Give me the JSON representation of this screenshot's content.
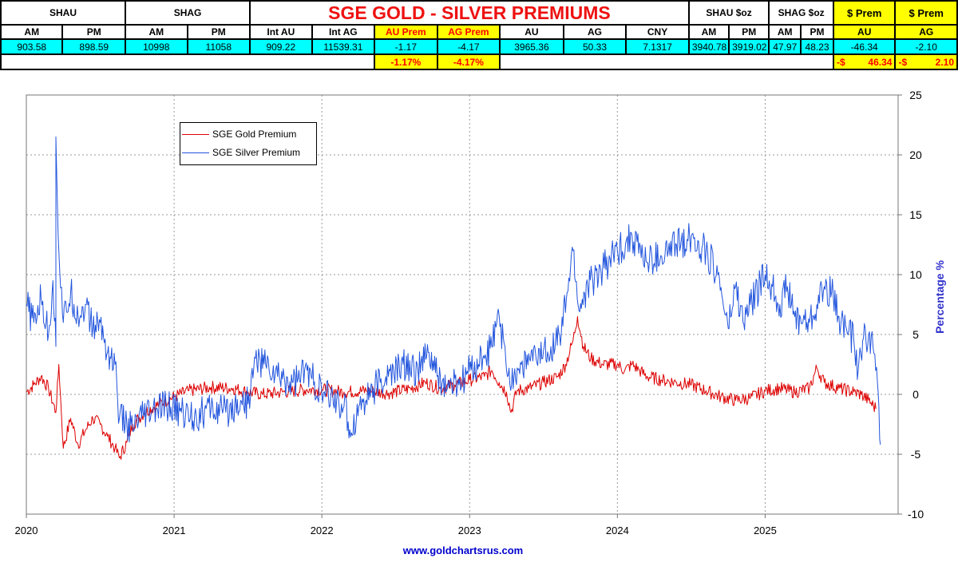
{
  "table": {
    "title": "SGE GOLD - SILVER PREMIUMS",
    "title_color": "#ee1111",
    "groups": {
      "shau": "SHAU",
      "shag": "SHAG",
      "shau_oz": "SHAU $oz",
      "shag_oz": "SHAG $oz",
      "prem_au": "$ Prem",
      "prem_ag": "$ Prem"
    },
    "headers": [
      "AM",
      "PM",
      "AM",
      "PM",
      "Int AU",
      "Int AG",
      "AU Prem",
      "AG Prem",
      "AU",
      "AG",
      "CNY",
      "AM",
      "PM",
      "AM",
      "PM",
      "AU",
      "AG"
    ],
    "values": [
      "903.58",
      "898.59",
      "10998",
      "11058",
      "909.22",
      "11539.31",
      "-1.17",
      "-4.17",
      "3965.36",
      "50.33",
      "7.1317",
      "3940.78",
      "3919.02",
      "47.97",
      "48.23",
      "-46.34",
      "-2.10"
    ],
    "pct": {
      "au": "-1.17%",
      "ag": "-4.17%"
    },
    "dollar": {
      "au_sign": "-$",
      "au_value": "46.34",
      "ag_sign": "-$",
      "ag_value": "2.10"
    }
  },
  "chart_data": {
    "type": "line",
    "title": "",
    "xlabel": "",
    "ylabel": "Percentage %",
    "x_ticks": [
      "2020",
      "2021",
      "2022",
      "2023",
      "2024",
      "2025"
    ],
    "xlim": [
      2020.0,
      2025.9
    ],
    "ylim": [
      -10,
      25
    ],
    "y_ticks": [
      -10,
      -5,
      0,
      5,
      10,
      15,
      20,
      25
    ],
    "y_axis_side": "right",
    "grid": true,
    "legend_placement": "top-left",
    "series": [
      {
        "name": "SGE Gold Premium",
        "color": "#dd0000",
        "points": [
          [
            2020.0,
            0.2
          ],
          [
            2020.05,
            0.8
          ],
          [
            2020.1,
            1.5
          ],
          [
            2020.15,
            0.5
          ],
          [
            2020.2,
            -1.5
          ],
          [
            2020.22,
            2.5
          ],
          [
            2020.25,
            -4.5
          ],
          [
            2020.3,
            -2.0
          ],
          [
            2020.35,
            -4.2
          ],
          [
            2020.4,
            -3.0
          ],
          [
            2020.45,
            -2.0
          ],
          [
            2020.5,
            -2.5
          ],
          [
            2020.55,
            -3.5
          ],
          [
            2020.6,
            -4.5
          ],
          [
            2020.63,
            -5.3
          ],
          [
            2020.68,
            -4.0
          ],
          [
            2020.72,
            -2.5
          ],
          [
            2020.8,
            -1.5
          ],
          [
            2020.9,
            -0.8
          ],
          [
            2021.0,
            -0.2
          ],
          [
            2021.1,
            0.3
          ],
          [
            2021.25,
            0.6
          ],
          [
            2021.4,
            0.5
          ],
          [
            2021.5,
            0.2
          ],
          [
            2021.6,
            0.0
          ],
          [
            2021.75,
            0.2
          ],
          [
            2021.9,
            0.4
          ],
          [
            2022.0,
            0.4
          ],
          [
            2022.15,
            0.2
          ],
          [
            2022.3,
            0.3
          ],
          [
            2022.45,
            0.1
          ],
          [
            2022.6,
            0.5
          ],
          [
            2022.7,
            1.0
          ],
          [
            2022.8,
            0.5
          ],
          [
            2022.9,
            0.8
          ],
          [
            2023.0,
            1.2
          ],
          [
            2023.1,
            1.5
          ],
          [
            2023.15,
            2.0
          ],
          [
            2023.2,
            1.0
          ],
          [
            2023.25,
            0.2
          ],
          [
            2023.28,
            -1.5
          ],
          [
            2023.32,
            0.3
          ],
          [
            2023.4,
            0.5
          ],
          [
            2023.5,
            1.0
          ],
          [
            2023.6,
            1.5
          ],
          [
            2023.65,
            2.5
          ],
          [
            2023.7,
            4.5
          ],
          [
            2023.73,
            6.5
          ],
          [
            2023.77,
            4.0
          ],
          [
            2023.82,
            3.0
          ],
          [
            2023.9,
            2.5
          ],
          [
            2024.0,
            2.5
          ],
          [
            2024.05,
            2.0
          ],
          [
            2024.1,
            2.5
          ],
          [
            2024.15,
            2.0
          ],
          [
            2024.2,
            1.5
          ],
          [
            2024.3,
            1.2
          ],
          [
            2024.4,
            1.0
          ],
          [
            2024.5,
            0.8
          ],
          [
            2024.6,
            0.3
          ],
          [
            2024.7,
            -0.2
          ],
          [
            2024.8,
            -0.5
          ],
          [
            2024.9,
            -0.3
          ],
          [
            2025.0,
            0.3
          ],
          [
            2025.1,
            0.5
          ],
          [
            2025.2,
            0.2
          ],
          [
            2025.3,
            0.5
          ],
          [
            2025.35,
            2.2
          ],
          [
            2025.4,
            1.0
          ],
          [
            2025.5,
            0.5
          ],
          [
            2025.6,
            0.2
          ],
          [
            2025.65,
            0.0
          ],
          [
            2025.7,
            -0.5
          ],
          [
            2025.75,
            -1.2
          ]
        ]
      },
      {
        "name": "SGE Silver Premium",
        "color": "#2255dd",
        "points": [
          [
            2020.0,
            7.5
          ],
          [
            2020.05,
            6.0
          ],
          [
            2020.1,
            8.0
          ],
          [
            2020.15,
            5.0
          ],
          [
            2020.18,
            9.5
          ],
          [
            2020.2,
            4.0
          ],
          [
            2020.2,
            21.5
          ],
          [
            2020.22,
            12.0
          ],
          [
            2020.25,
            6.0
          ],
          [
            2020.3,
            8.5
          ],
          [
            2020.35,
            6.5
          ],
          [
            2020.4,
            7.5
          ],
          [
            2020.45,
            5.5
          ],
          [
            2020.5,
            6.0
          ],
          [
            2020.55,
            3.5
          ],
          [
            2020.6,
            2.5
          ],
          [
            2020.63,
            -2.0
          ],
          [
            2020.68,
            -2.5
          ],
          [
            2020.72,
            -3.0
          ],
          [
            2020.78,
            -2.0
          ],
          [
            2020.85,
            -1.5
          ],
          [
            2020.95,
            -1.0
          ],
          [
            2021.05,
            -1.5
          ],
          [
            2021.15,
            -1.8
          ],
          [
            2021.25,
            -1.2
          ],
          [
            2021.35,
            -1.5
          ],
          [
            2021.45,
            -0.5
          ],
          [
            2021.5,
            -0.8
          ],
          [
            2021.55,
            3.0
          ],
          [
            2021.62,
            2.5
          ],
          [
            2021.7,
            1.5
          ],
          [
            2021.8,
            1.0
          ],
          [
            2021.9,
            2.0
          ],
          [
            2022.0,
            0.0
          ],
          [
            2022.1,
            -0.5
          ],
          [
            2022.15,
            -1.0
          ],
          [
            2022.2,
            -3.2
          ],
          [
            2022.25,
            -1.0
          ],
          [
            2022.35,
            0.5
          ],
          [
            2022.45,
            1.5
          ],
          [
            2022.55,
            2.5
          ],
          [
            2022.65,
            2.0
          ],
          [
            2022.72,
            3.5
          ],
          [
            2022.78,
            1.5
          ],
          [
            2022.85,
            0.5
          ],
          [
            2022.95,
            1.0
          ],
          [
            2023.0,
            2.0
          ],
          [
            2023.1,
            3.0
          ],
          [
            2023.15,
            4.0
          ],
          [
            2023.2,
            6.5
          ],
          [
            2023.25,
            2.0
          ],
          [
            2023.3,
            1.5
          ],
          [
            2023.35,
            2.5
          ],
          [
            2023.45,
            3.0
          ],
          [
            2023.55,
            4.0
          ],
          [
            2023.62,
            5.0
          ],
          [
            2023.66,
            8.5
          ],
          [
            2023.7,
            12.0
          ],
          [
            2023.74,
            7.0
          ],
          [
            2023.8,
            9.0
          ],
          [
            2023.9,
            10.5
          ],
          [
            2024.0,
            12.0
          ],
          [
            2024.1,
            13.2
          ],
          [
            2024.2,
            11.0
          ],
          [
            2024.3,
            11.5
          ],
          [
            2024.4,
            12.5
          ],
          [
            2024.5,
            13.2
          ],
          [
            2024.6,
            12.0
          ],
          [
            2024.68,
            10.0
          ],
          [
            2024.75,
            5.5
          ],
          [
            2024.8,
            9.0
          ],
          [
            2024.85,
            6.0
          ],
          [
            2024.9,
            7.5
          ],
          [
            2025.0,
            10.0
          ],
          [
            2025.05,
            9.0
          ],
          [
            2025.1,
            7.5
          ],
          [
            2025.15,
            9.0
          ],
          [
            2025.2,
            6.5
          ],
          [
            2025.3,
            6.0
          ],
          [
            2025.35,
            7.5
          ],
          [
            2025.4,
            9.0
          ],
          [
            2025.45,
            8.5
          ],
          [
            2025.5,
            6.5
          ],
          [
            2025.55,
            5.5
          ],
          [
            2025.6,
            4.5
          ],
          [
            2025.63,
            2.0
          ],
          [
            2025.66,
            4.5
          ],
          [
            2025.7,
            5.0
          ],
          [
            2025.73,
            4.0
          ],
          [
            2025.76,
            1.0
          ],
          [
            2025.78,
            -4.2
          ]
        ]
      }
    ],
    "credit": "www.goldchartsrus.com"
  }
}
